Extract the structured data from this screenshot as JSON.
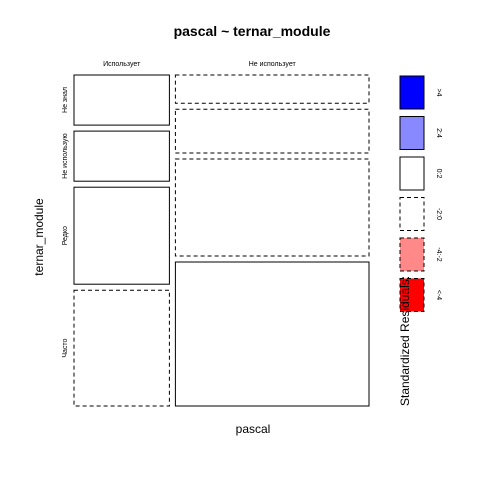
{
  "chart_data": {
    "type": "mosaic",
    "title": "pascal ~ ternar_module",
    "xlabel": "pascal",
    "ylabel": "ternar_module",
    "x_categories": [
      "Использует",
      "Не использует"
    ],
    "y_categories": [
      "Не знал",
      "Не использую",
      "Редко",
      "Часто"
    ],
    "x_proportions": [
      0.33,
      0.67
    ],
    "y_proportions_by_x": [
      [
        0.16,
        0.16,
        0.31,
        0.37
      ],
      [
        0.09,
        0.14,
        0.31,
        0.46
      ]
    ],
    "residual_class_by_cell": [
      [
        "0:2",
        "0:2",
        "0:2",
        "-2:0"
      ],
      [
        "-2:0",
        "-2:0",
        "-2:0",
        "0:2"
      ]
    ],
    "legend": {
      "title": "Standardized Residuals:",
      "items": [
        {
          "label": ">4",
          "fill": "#0000ff",
          "dashed": false
        },
        {
          "label": "2:4",
          "fill": "#8888ff",
          "dashed": false
        },
        {
          "label": "0:2",
          "fill": "#ffffff",
          "dashed": false
        },
        {
          "label": "-2:0",
          "fill": "#ffffff",
          "dashed": true
        },
        {
          "label": "-4:-2",
          "fill": "#ff8888",
          "dashed": true
        },
        {
          "label": "<-4",
          "fill": "#ff0000",
          "dashed": true
        }
      ]
    }
  }
}
